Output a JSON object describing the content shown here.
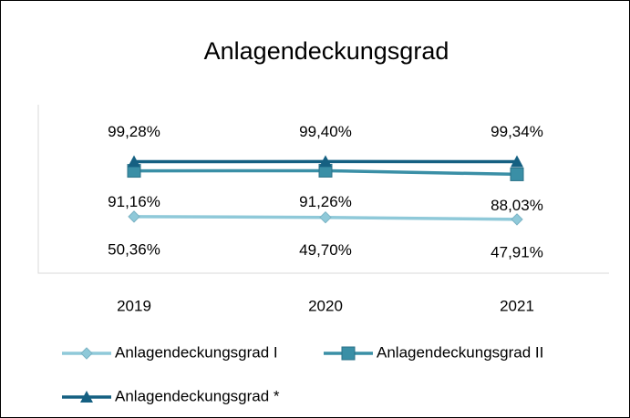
{
  "chart_data": {
    "type": "line",
    "title": "Anlagendeckungsgrad",
    "categories": [
      "2019",
      "2020",
      "2021"
    ],
    "ylim": [
      0,
      150
    ],
    "series": [
      {
        "name": "Anlagendeckungsgrad I",
        "color": "#8fc9d9",
        "marker": "diamond",
        "values": [
          50.36,
          49.7,
          47.91
        ],
        "value_labels": [
          "50,36%",
          "49,70%",
          "47,91%"
        ]
      },
      {
        "name": "Anlagendeckungsgrad II",
        "color": "#3a8fa6",
        "marker": "square",
        "values": [
          91.16,
          91.26,
          88.03
        ],
        "value_labels": [
          "91,16%",
          "91,26%",
          "88,03%"
        ]
      },
      {
        "name": "Anlagendeckungsgrad *",
        "color": "#156082",
        "marker": "triangle",
        "values": [
          99.28,
          99.4,
          99.34
        ],
        "value_labels": [
          "99,28%",
          "99,40%",
          "99,34%"
        ]
      }
    ]
  }
}
